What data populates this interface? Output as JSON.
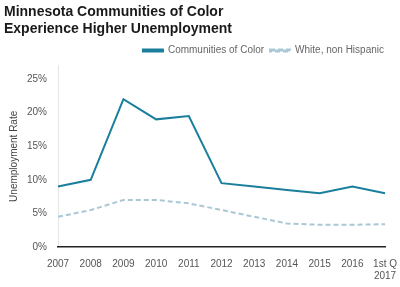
{
  "chart_data": {
    "type": "line",
    "title": [
      "Minnesota Communities of Color",
      "Experience Higher Unemployment"
    ],
    "ylabel": "Unemployment Rate",
    "categories": [
      "2007",
      "2008",
      "2009",
      "2010",
      "2011",
      "2012",
      "2013",
      "2014",
      "2015",
      "2016",
      "1st Q\n2017"
    ],
    "series": [
      {
        "name": "Communities of Color",
        "color": "#1a7f9c",
        "line_style": "solid",
        "values": [
          0.09,
          0.1,
          0.22,
          0.19,
          0.195,
          0.095,
          0.09,
          0.085,
          0.08,
          0.09,
          0.08
        ]
      },
      {
        "name": "White, non Hispanic",
        "color": "#aac8d4",
        "line_style": "dashed",
        "values": [
          0.045,
          0.055,
          0.07,
          0.07,
          0.065,
          0.055,
          0.045,
          0.035,
          0.033,
          0.033,
          0.034
        ]
      }
    ],
    "ylim": [
      0,
      0.27
    ],
    "yticks": [
      {
        "value": 0,
        "label": "0%"
      },
      {
        "value": 0.05,
        "label": "5%"
      },
      {
        "value": 0.1,
        "label": "10%"
      },
      {
        "value": 0.15,
        "label": "15%"
      },
      {
        "value": 0.2,
        "label": "20%"
      },
      {
        "value": 0.25,
        "label": "25%"
      }
    ],
    "grid": false,
    "legend": "upper right"
  }
}
